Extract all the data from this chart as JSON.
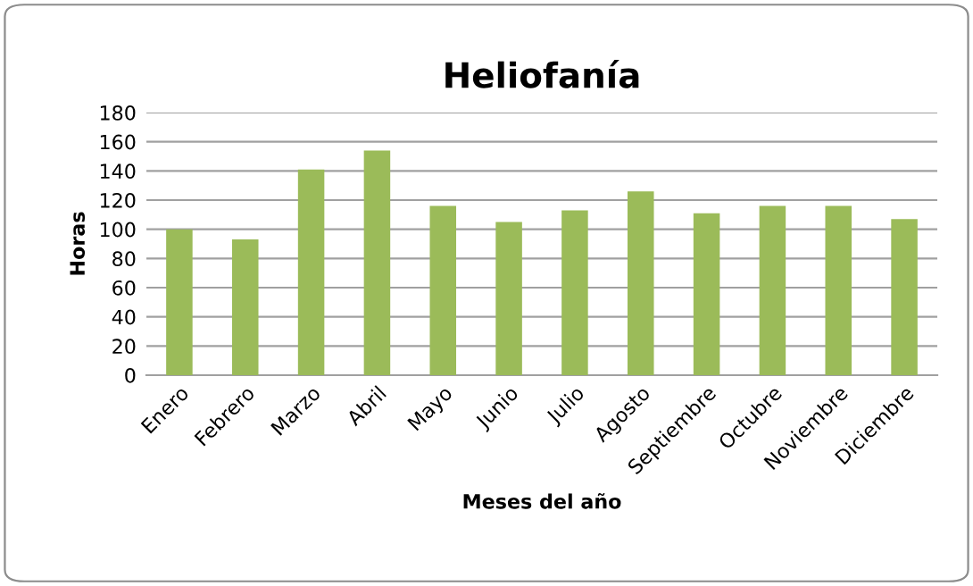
{
  "chart_data": {
    "type": "bar",
    "title": "Heliofanía",
    "xlabel": "Meses del año",
    "ylabel": "Horas",
    "categories": [
      "Enero",
      "Febrero",
      "Marzo",
      "Abril",
      "Mayo",
      "Junio",
      "Julio",
      "Agosto",
      "Septiembre",
      "Octubre",
      "Noviembre",
      "Diciembre"
    ],
    "values": [
      100,
      93,
      141,
      154,
      116,
      105,
      113,
      126,
      111,
      116,
      116,
      107
    ],
    "color": "#9bbb59",
    "ylim": [
      0,
      180
    ],
    "yticks": [
      0,
      20,
      40,
      60,
      80,
      100,
      120,
      140,
      160,
      180
    ],
    "grid": "y",
    "legend": false
  }
}
